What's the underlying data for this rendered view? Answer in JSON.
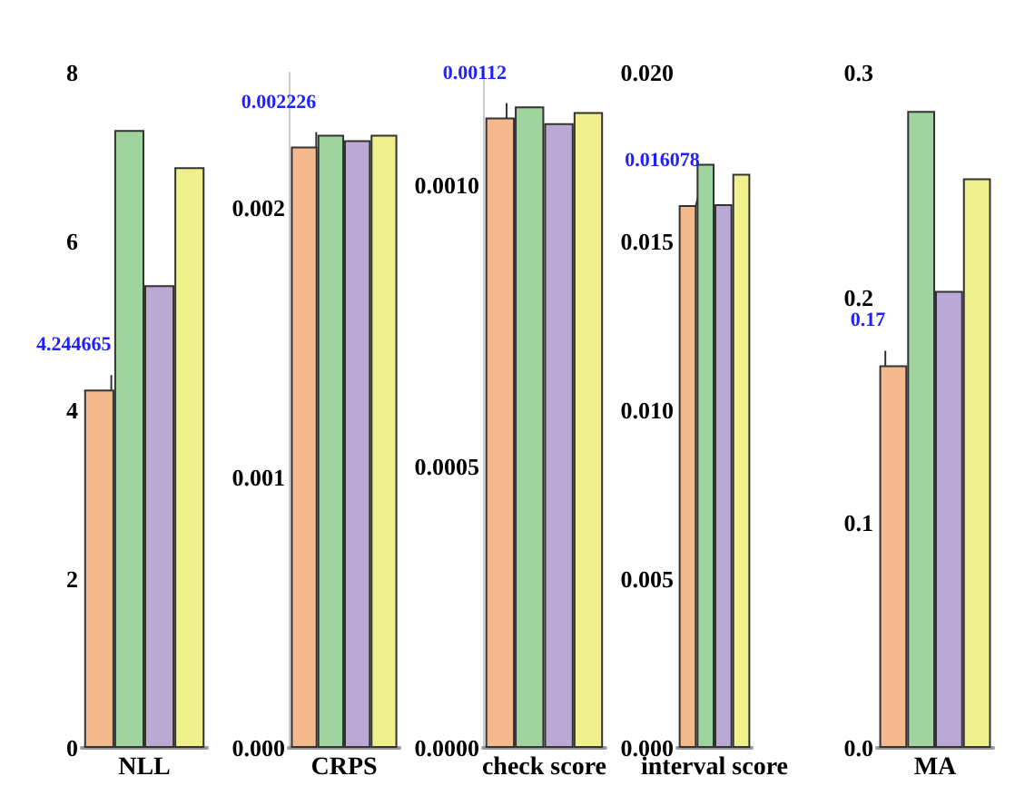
{
  "chart_data": [
    {
      "type": "bar",
      "categories": [
        "NLL"
      ],
      "ylim": [
        0,
        8
      ],
      "yticks": [
        0,
        2,
        4,
        6,
        8
      ],
      "series": [
        {
          "color": "#f4b98c",
          "values": [
            4.244665
          ],
          "value_labels": [
            "4.244665"
          ]
        },
        {
          "color": "#9fd49f",
          "values": [
            7.32
          ]
        },
        {
          "color": "#b9a9d4",
          "values": [
            5.48
          ]
        },
        {
          "color": "#f0f08c",
          "values": [
            6.88
          ]
        }
      ]
    },
    {
      "type": "bar",
      "categories": [
        "CRPS"
      ],
      "ylim": [
        0,
        0.0025
      ],
      "yticks": [
        {
          "value": 0,
          "label": "0.000"
        },
        {
          "value": 0.001,
          "label": "0.001"
        },
        {
          "value": 0.002,
          "label": "0.002"
        }
      ],
      "series": [
        {
          "color": "#f4b98c",
          "values": [
            0.002226
          ],
          "value_labels": [
            "0.002226"
          ]
        },
        {
          "color": "#9fd49f",
          "values": [
            0.00227
          ]
        },
        {
          "color": "#b9a9d4",
          "values": [
            0.00225
          ]
        },
        {
          "color": "#f0f08c",
          "values": [
            0.00227
          ]
        }
      ]
    },
    {
      "type": "bar",
      "categories": [
        "check score"
      ],
      "ylim": [
        0,
        0.0012
      ],
      "yticks": [
        {
          "value": 0,
          "label": "0.0000"
        },
        {
          "value": 0.0005,
          "label": "0.0005"
        },
        {
          "value": 0.001,
          "label": "0.0010"
        }
      ],
      "series": [
        {
          "color": "#f4b98c",
          "values": [
            0.00112
          ],
          "value_labels": [
            "0.00112"
          ]
        },
        {
          "color": "#9fd49f",
          "values": [
            0.00114
          ]
        },
        {
          "color": "#b9a9d4",
          "values": [
            0.00111
          ]
        },
        {
          "color": "#f0f08c",
          "values": [
            0.00113
          ]
        }
      ]
    },
    {
      "type": "bar",
      "categories": [
        "interval score"
      ],
      "ylim": [
        0,
        0.02
      ],
      "yticks": [
        {
          "value": 0,
          "label": "0.000"
        },
        {
          "value": 0.005,
          "label": "0.005"
        },
        {
          "value": 0.01,
          "label": "0.010"
        },
        {
          "value": 0.015,
          "label": "0.015"
        },
        {
          "value": 0.02,
          "label": "0.020"
        }
      ],
      "series": [
        {
          "color": "#f4b98c",
          "values": [
            0.016078
          ],
          "value_labels": [
            "0.016078"
          ]
        },
        {
          "color": "#9fd49f",
          "values": [
            0.0173
          ]
        },
        {
          "color": "#b9a9d4",
          "values": [
            0.0161
          ]
        },
        {
          "color": "#f0f08c",
          "values": [
            0.017
          ]
        }
      ]
    },
    {
      "type": "bar",
      "categories": [
        "MA"
      ],
      "ylim": [
        0,
        0.3
      ],
      "yticks": [
        {
          "value": 0,
          "label": "0.0"
        },
        {
          "value": 0.1,
          "label": "0.1"
        },
        {
          "value": 0.2,
          "label": "0.2"
        },
        {
          "value": 0.3,
          "label": "0.3"
        }
      ],
      "series": [
        {
          "color": "#f4b98c",
          "values": [
            0.17
          ],
          "value_labels": [
            "0.17"
          ]
        },
        {
          "color": "#9fd49f",
          "values": [
            0.283
          ]
        },
        {
          "color": "#b9a9d4",
          "values": [
            0.203
          ]
        },
        {
          "color": "#f0f08c",
          "values": [
            0.253
          ]
        }
      ]
    }
  ]
}
